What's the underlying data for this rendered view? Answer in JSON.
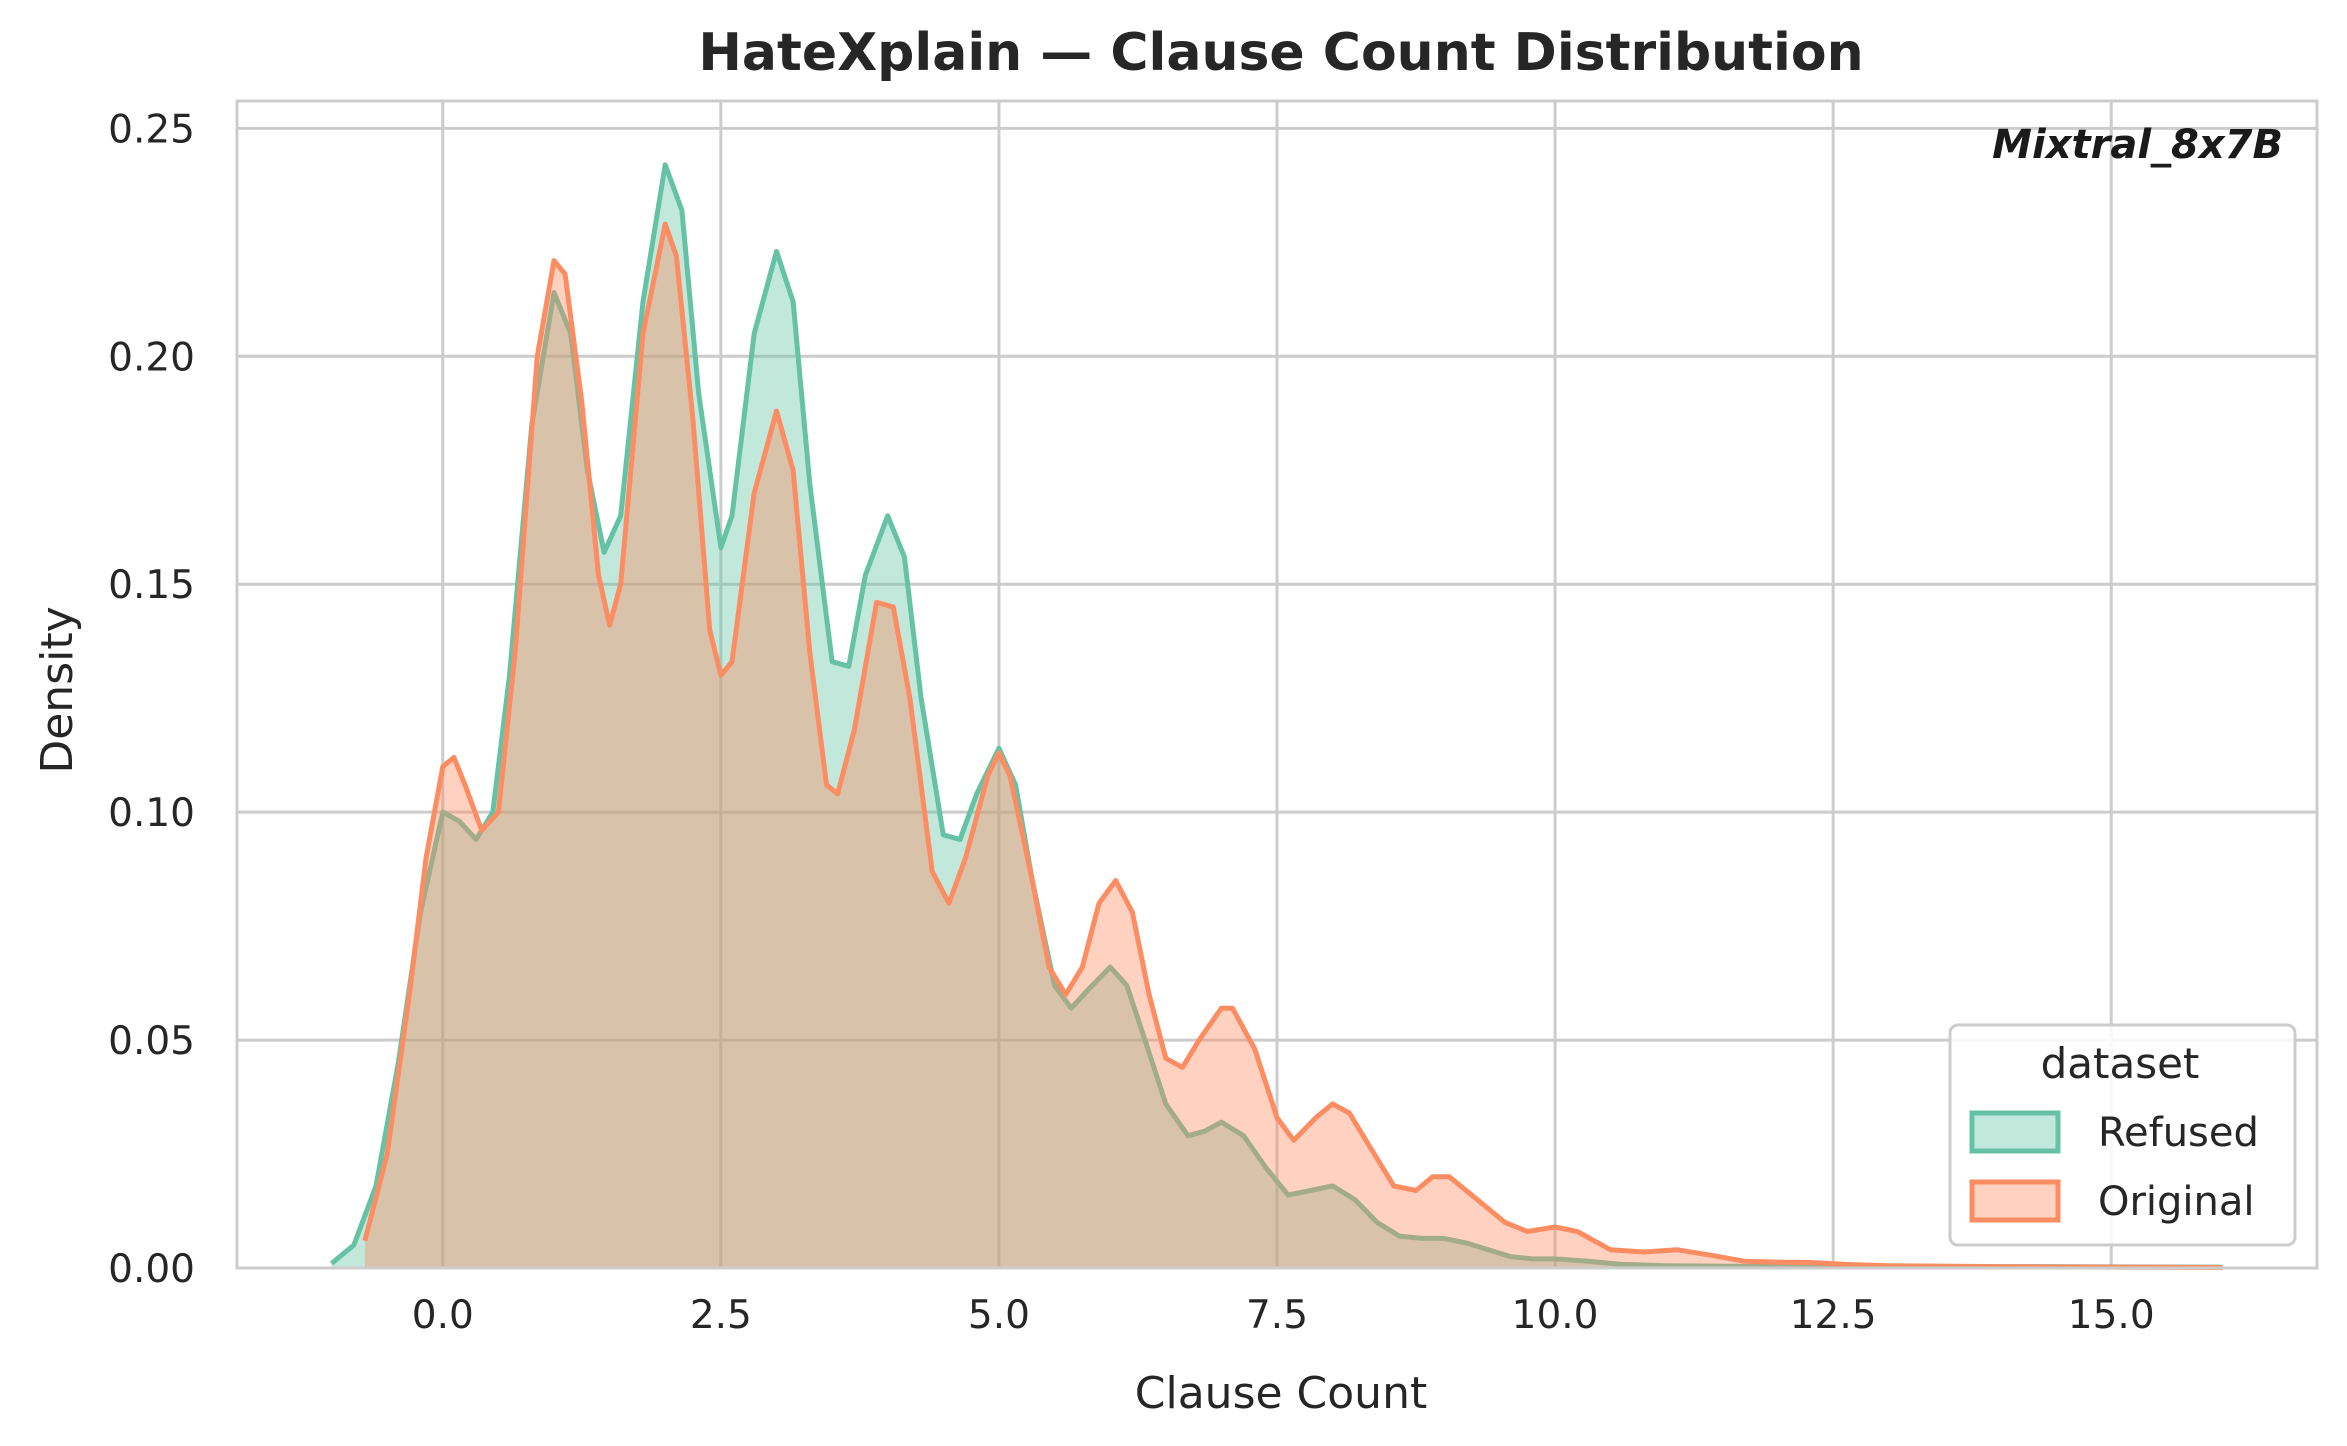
{
  "chart_data": {
    "type": "area",
    "title": "HateXplain — Clause Count Distribution",
    "annotation": "Mixtral_8x7B",
    "xlabel": "Clause Count",
    "ylabel": "Density",
    "xlim": [
      -1.85,
      16.85
    ],
    "ylim": [
      0,
      0.256
    ],
    "xticks": [
      0.0,
      2.5,
      5.0,
      7.5,
      10.0,
      12.5,
      15.0
    ],
    "xtick_labels": [
      "0.0",
      "2.5",
      "5.0",
      "7.5",
      "10.0",
      "12.5",
      "15.0"
    ],
    "yticks": [
      0.0,
      0.05,
      0.1,
      0.15,
      0.2,
      0.25
    ],
    "ytick_labels": [
      "0.00",
      "0.05",
      "0.10",
      "0.15",
      "0.20",
      "0.25"
    ],
    "grid": true,
    "legend": {
      "title": "dataset",
      "placement": "lower-right"
    },
    "series": [
      {
        "name": "Refused",
        "color": "#66c2a5",
        "points": [
          [
            -1.0,
            0.001
          ],
          [
            -0.8,
            0.005
          ],
          [
            -0.6,
            0.018
          ],
          [
            -0.4,
            0.045
          ],
          [
            -0.2,
            0.078
          ],
          [
            0.0,
            0.1
          ],
          [
            0.15,
            0.098
          ],
          [
            0.3,
            0.094
          ],
          [
            0.45,
            0.1
          ],
          [
            0.6,
            0.13
          ],
          [
            0.8,
            0.185
          ],
          [
            1.0,
            0.214
          ],
          [
            1.15,
            0.205
          ],
          [
            1.3,
            0.175
          ],
          [
            1.45,
            0.157
          ],
          [
            1.6,
            0.165
          ],
          [
            1.8,
            0.212
          ],
          [
            2.0,
            0.242
          ],
          [
            2.15,
            0.232
          ],
          [
            2.3,
            0.192
          ],
          [
            2.5,
            0.158
          ],
          [
            2.6,
            0.165
          ],
          [
            2.8,
            0.205
          ],
          [
            3.0,
            0.223
          ],
          [
            3.15,
            0.212
          ],
          [
            3.3,
            0.172
          ],
          [
            3.5,
            0.133
          ],
          [
            3.65,
            0.132
          ],
          [
            3.8,
            0.152
          ],
          [
            4.0,
            0.165
          ],
          [
            4.15,
            0.156
          ],
          [
            4.3,
            0.125
          ],
          [
            4.5,
            0.095
          ],
          [
            4.65,
            0.094
          ],
          [
            4.8,
            0.104
          ],
          [
            5.0,
            0.114
          ],
          [
            5.15,
            0.106
          ],
          [
            5.3,
            0.085
          ],
          [
            5.5,
            0.062
          ],
          [
            5.65,
            0.057
          ],
          [
            5.8,
            0.061
          ],
          [
            6.0,
            0.066
          ],
          [
            6.15,
            0.062
          ],
          [
            6.3,
            0.051
          ],
          [
            6.5,
            0.036
          ],
          [
            6.7,
            0.029
          ],
          [
            6.85,
            0.03
          ],
          [
            7.0,
            0.032
          ],
          [
            7.2,
            0.029
          ],
          [
            7.4,
            0.022
          ],
          [
            7.6,
            0.016
          ],
          [
            7.8,
            0.017
          ],
          [
            8.0,
            0.018
          ],
          [
            8.2,
            0.015
          ],
          [
            8.4,
            0.01
          ],
          [
            8.6,
            0.007
          ],
          [
            8.8,
            0.0065
          ],
          [
            9.0,
            0.0065
          ],
          [
            9.2,
            0.0055
          ],
          [
            9.4,
            0.004
          ],
          [
            9.6,
            0.0025
          ],
          [
            9.8,
            0.002
          ],
          [
            10.0,
            0.002
          ],
          [
            10.3,
            0.0015
          ],
          [
            10.6,
            0.0008
          ],
          [
            11.0,
            0.0005
          ],
          [
            12.0,
            0.0003
          ],
          [
            14.0,
            0.0003
          ],
          [
            16.0,
            0.0002
          ]
        ]
      },
      {
        "name": "Original",
        "color": "#fc8d62",
        "points": [
          [
            -0.7,
            0.006
          ],
          [
            -0.5,
            0.025
          ],
          [
            -0.3,
            0.06
          ],
          [
            -0.15,
            0.09
          ],
          [
            0.0,
            0.11
          ],
          [
            0.1,
            0.112
          ],
          [
            0.2,
            0.106
          ],
          [
            0.35,
            0.096
          ],
          [
            0.5,
            0.1
          ],
          [
            0.65,
            0.135
          ],
          [
            0.85,
            0.2
          ],
          [
            1.0,
            0.221
          ],
          [
            1.1,
            0.218
          ],
          [
            1.25,
            0.19
          ],
          [
            1.4,
            0.152
          ],
          [
            1.5,
            0.141
          ],
          [
            1.6,
            0.15
          ],
          [
            1.8,
            0.205
          ],
          [
            2.0,
            0.229
          ],
          [
            2.1,
            0.222
          ],
          [
            2.25,
            0.186
          ],
          [
            2.4,
            0.14
          ],
          [
            2.5,
            0.13
          ],
          [
            2.6,
            0.133
          ],
          [
            2.8,
            0.17
          ],
          [
            3.0,
            0.188
          ],
          [
            3.15,
            0.175
          ],
          [
            3.3,
            0.135
          ],
          [
            3.45,
            0.106
          ],
          [
            3.55,
            0.104
          ],
          [
            3.7,
            0.118
          ],
          [
            3.9,
            0.146
          ],
          [
            4.05,
            0.145
          ],
          [
            4.2,
            0.125
          ],
          [
            4.4,
            0.087
          ],
          [
            4.55,
            0.08
          ],
          [
            4.7,
            0.09
          ],
          [
            4.9,
            0.108
          ],
          [
            5.0,
            0.113
          ],
          [
            5.1,
            0.108
          ],
          [
            5.3,
            0.085
          ],
          [
            5.45,
            0.066
          ],
          [
            5.6,
            0.06
          ],
          [
            5.75,
            0.066
          ],
          [
            5.9,
            0.08
          ],
          [
            6.05,
            0.085
          ],
          [
            6.2,
            0.078
          ],
          [
            6.35,
            0.06
          ],
          [
            6.5,
            0.046
          ],
          [
            6.65,
            0.044
          ],
          [
            6.8,
            0.05
          ],
          [
            7.0,
            0.057
          ],
          [
            7.1,
            0.057
          ],
          [
            7.3,
            0.048
          ],
          [
            7.5,
            0.033
          ],
          [
            7.65,
            0.028
          ],
          [
            7.85,
            0.033
          ],
          [
            8.0,
            0.036
          ],
          [
            8.15,
            0.034
          ],
          [
            8.35,
            0.026
          ],
          [
            8.55,
            0.018
          ],
          [
            8.75,
            0.017
          ],
          [
            8.9,
            0.02
          ],
          [
            9.05,
            0.02
          ],
          [
            9.3,
            0.015
          ],
          [
            9.55,
            0.01
          ],
          [
            9.75,
            0.008
          ],
          [
            10.0,
            0.009
          ],
          [
            10.2,
            0.008
          ],
          [
            10.5,
            0.004
          ],
          [
            10.8,
            0.0035
          ],
          [
            11.1,
            0.004
          ],
          [
            11.4,
            0.0028
          ],
          [
            11.7,
            0.0015
          ],
          [
            12.0,
            0.0013
          ],
          [
            12.3,
            0.0012
          ],
          [
            12.6,
            0.0008
          ],
          [
            13.0,
            0.0005
          ],
          [
            14.0,
            0.0003
          ],
          [
            15.0,
            0.0002
          ],
          [
            16.0,
            0.0001
          ]
        ]
      }
    ]
  }
}
